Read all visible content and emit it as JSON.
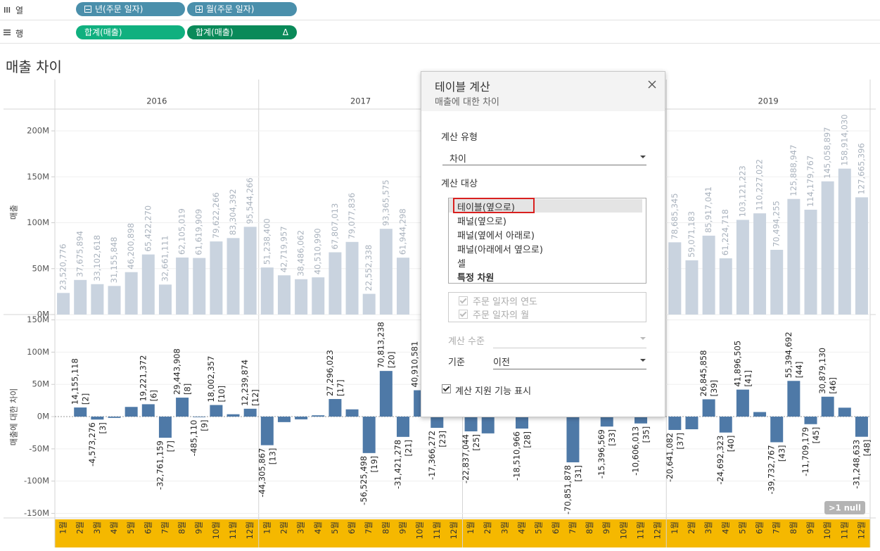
{
  "shelves": {
    "columns_label": "열",
    "columns": [
      "년(주문 일자)",
      "월(주문 일자)"
    ],
    "rows_label": "행",
    "rows": [
      "합계(매출)",
      "합계(매출)"
    ],
    "table_calc_marker": "Δ"
  },
  "sheet_title": "매출 차이",
  "panes": [
    "2016",
    "2017",
    null,
    "2019"
  ],
  "months": [
    "1월",
    "2월",
    "3월",
    "4월",
    "5월",
    "6월",
    "7월",
    "8월",
    "9월",
    "10월",
    "11월",
    "12월"
  ],
  "null_badge": ">1 null",
  "chart_data": [
    {
      "type": "bar",
      "ylabel": "매출",
      "color": "#c9d3df",
      "label_color": "#a9b2bd",
      "grid": true,
      "ylim": [
        0,
        223000000
      ],
      "yticks": [
        {
          "value": 0,
          "label": "0M"
        },
        {
          "value": 50000000,
          "label": "50M"
        },
        {
          "value": 100000000,
          "label": "100M"
        },
        {
          "value": 150000000,
          "label": "150M"
        },
        {
          "value": 200000000,
          "label": "200M"
        }
      ],
      "values": [
        23520776,
        37675894,
        33102618,
        31155848,
        46200898,
        65422270,
        32661111,
        62105019,
        61619909,
        79622266,
        83304392,
        95544266,
        51238400,
        42719957,
        38486062,
        40510990,
        67807013,
        79077836,
        22552338,
        93365575,
        61944298,
        null,
        null,
        null,
        null,
        null,
        null,
        null,
        null,
        null,
        null,
        null,
        null,
        null,
        null,
        null,
        78685345,
        59071183,
        85917041,
        61224718,
        103121223,
        110227022,
        70494255,
        125888947,
        114179767,
        145058897,
        158914030,
        127665396
      ],
      "value_labels": [
        "23,520,776",
        "37,675,894",
        "33,102,618",
        "31,155,848",
        "46,200,898",
        "65,422,270",
        "32,661,111",
        "62,105,019",
        "61,619,909",
        "79,622,266",
        "83,304,392",
        "95,544,266",
        "51,238,400",
        "42,719,957",
        "38,486,062",
        "40,510,990",
        "67,807,013",
        "79,077,836",
        "22,552,338",
        "93,365,575",
        "61,944,298",
        null,
        null,
        null,
        null,
        null,
        null,
        null,
        null,
        null,
        null,
        null,
        null,
        null,
        null,
        null,
        "78,685,345",
        "59,071,183",
        "85,917,041",
        "61,224,718",
        "103,121,223",
        "110,227,022",
        "70,494,255",
        "125,888,947",
        "114,179,767",
        "145,058,897",
        "158,914,030",
        "127,665,396"
      ]
    },
    {
      "type": "bar",
      "ylabel": "매출에 대한 차이",
      "color": "#4e79a7",
      "label_color": "#222222",
      "grid": true,
      "ylim": [
        -156000000,
        155000000
      ],
      "yticks": [
        {
          "value": -150000000,
          "label": "-150M"
        },
        {
          "value": -100000000,
          "label": "-100M"
        },
        {
          "value": -50000000,
          "label": "-50M"
        },
        {
          "value": 0,
          "label": "0M"
        },
        {
          "value": 50000000,
          "label": "50M"
        },
        {
          "value": 100000000,
          "label": "100M"
        },
        {
          "value": 150000000,
          "label": "150M"
        }
      ],
      "values": [
        null,
        14155118,
        -4573276,
        -1946770,
        15045050,
        19221372,
        -32761159,
        29443908,
        -485110,
        18002357,
        3682126,
        12239874,
        -44305867,
        -8518443,
        -4233895,
        2024928,
        27296023,
        11270823,
        -56525498,
        70813238,
        -31421278,
        40910581,
        -17366272,
        null,
        -22837044,
        -26000000,
        null,
        -18510966,
        null,
        null,
        -70851878,
        null,
        -15396569,
        null,
        -10606013,
        null,
        -20641082,
        -19614162,
        26845858,
        -24692323,
        41896505,
        7105799,
        -39732767,
        55394692,
        -11709179,
        30879130,
        13855133,
        -31248633
      ],
      "value_labels": [
        null,
        "14,155,118",
        "-4,573,276",
        null,
        null,
        "19,221,372",
        "-32,761,159",
        "29,443,908",
        "-485,110",
        "18,002,357",
        null,
        "12,239,874",
        "-44,305,867",
        null,
        null,
        null,
        "27,296,023",
        null,
        "-56,525,498",
        "70,813,238",
        "-31,421,278",
        "40,910,581",
        "-17,366,272",
        null,
        "-22,837,044",
        null,
        null,
        "-18,510,966",
        null,
        null,
        "-70,851,878",
        null,
        "-15,396,569",
        null,
        "-10,606,013",
        null,
        "-20,641,082",
        null,
        "26,845,858",
        "-24,692,323",
        "41,896,505",
        null,
        "-39,732,767",
        "55,394,692",
        "-11,709,179",
        "30,879,130",
        null,
        "-31,248,633"
      ],
      "index_labels": [
        null,
        "[2]",
        "[3]",
        null,
        null,
        "[6]",
        "[7]",
        "[8]",
        "[9]",
        "[10]",
        null,
        "[12]",
        "[13]",
        null,
        null,
        null,
        "[17]",
        null,
        "[19]",
        "[20]",
        "[21]",
        null,
        "[23]",
        null,
        "[25]",
        null,
        null,
        "[28]",
        null,
        null,
        "[31]",
        null,
        "[33]",
        null,
        "[35]",
        null,
        "[37]",
        null,
        "[39]",
        "[40]",
        "[41]",
        null,
        "[43]",
        "[44]",
        "[45]",
        "[46]",
        null,
        "[48]"
      ]
    }
  ],
  "dialog": {
    "title": "테이블 계산",
    "subtitle": "매출에 대한 차이",
    "calc_type_label": "계산 유형",
    "calc_type": "차이",
    "compute_using_label": "계산 대상",
    "compute_using_options": [
      "테이블(옆으로)",
      "패널(옆으로)",
      "패널(옆에서 아래로)",
      "패널(아래에서 옆으로)",
      "셀",
      "특정 차원"
    ],
    "fields": [
      "주문 일자의 연도",
      "주문 일자의 월"
    ],
    "level_label": "계산 수준",
    "relative_label": "기준",
    "relative": "이전",
    "assist": "계산 지원 기능 표시"
  }
}
